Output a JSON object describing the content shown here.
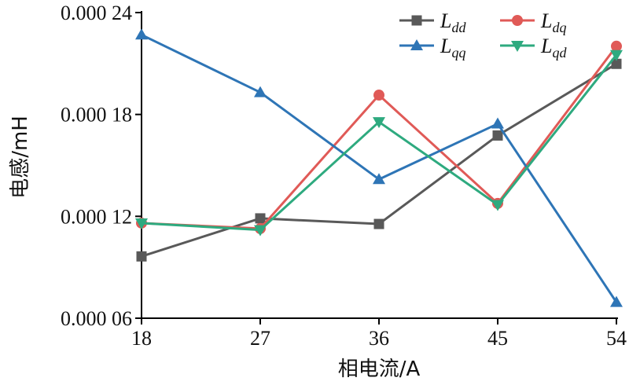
{
  "chart_data": {
    "type": "line",
    "xlabel": "相电流/A",
    "ylabel": "电感/mH",
    "x": [
      18,
      27,
      36,
      45,
      54
    ],
    "x_tick_labels": [
      "18",
      "27",
      "36",
      "45",
      "54"
    ],
    "xlim": [
      18,
      54
    ],
    "ylim": [
      6e-05,
      0.00024
    ],
    "y_ticks": [
      6e-05,
      0.00012,
      0.00018,
      0.00024
    ],
    "y_tick_labels": [
      "0.000 06",
      "0.000 12",
      "0.000 18",
      "0.000 24"
    ],
    "grid": false,
    "legend_position": "top-right",
    "series": [
      {
        "name": "Ldd",
        "main": "L",
        "sub": "dd",
        "color": "#595959",
        "marker": "square",
        "values": [
          9.64e-05,
          0.0001188,
          0.0001155,
          0.0001676,
          0.0002098
        ]
      },
      {
        "name": "Ldq",
        "main": "L",
        "sub": "dq",
        "color": "#e05a57",
        "marker": "circle",
        "values": [
          0.000116,
          0.0001128,
          0.0001914,
          0.0001276,
          0.0002202
        ]
      },
      {
        "name": "Lqq",
        "main": "L",
        "sub": "qq",
        "color": "#2e75b6",
        "marker": "triangle-up",
        "values": [
          0.0002269,
          0.000193,
          0.0001418,
          0.0001745,
          6.94e-05
        ]
      },
      {
        "name": "Lqd",
        "main": "L",
        "sub": "qd",
        "color": "#2eaa7f",
        "marker": "triangle-down",
        "values": [
          0.000116,
          0.000112,
          0.0001756,
          0.0001268,
          0.0002151
        ]
      }
    ]
  }
}
